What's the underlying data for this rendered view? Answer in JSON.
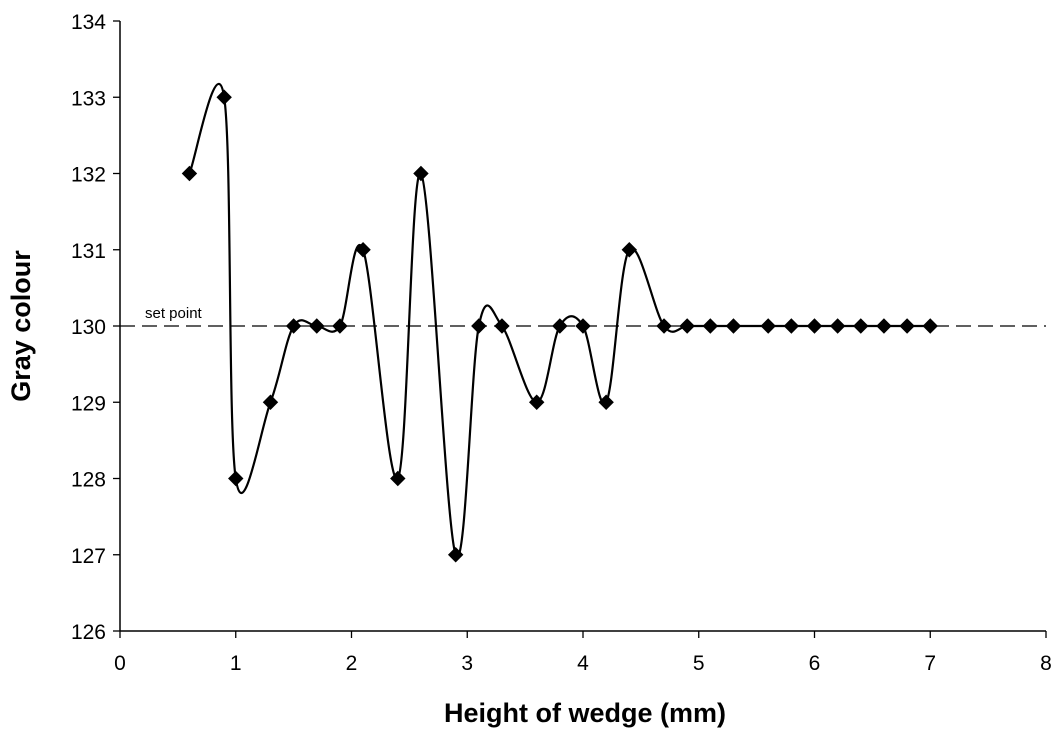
{
  "chart_data": {
    "type": "line",
    "title": "",
    "xlabel": "Height of wedge (mm)",
    "ylabel": "Gray colour",
    "xlim": [
      0,
      8
    ],
    "ylim": [
      126,
      134
    ],
    "x_ticks": [
      "0",
      "1",
      "2",
      "3",
      "4",
      "5",
      "6",
      "7",
      "8"
    ],
    "y_ticks": [
      "126",
      "127",
      "128",
      "129",
      "130",
      "131",
      "132",
      "133",
      "134"
    ],
    "grid": false,
    "legend": "none",
    "smooth": true,
    "marker": "diamond",
    "series": [
      {
        "points": [
          [
            0.6,
            132
          ],
          [
            0.9,
            133
          ],
          [
            1.0,
            128
          ],
          [
            1.3,
            129
          ],
          [
            1.5,
            130
          ],
          [
            1.7,
            130
          ],
          [
            1.9,
            130
          ],
          [
            2.1,
            131
          ],
          [
            2.4,
            128
          ],
          [
            2.6,
            132
          ],
          [
            2.9,
            127
          ],
          [
            3.1,
            130
          ],
          [
            3.3,
            130
          ],
          [
            3.6,
            129
          ],
          [
            3.8,
            130
          ],
          [
            4.0,
            130
          ],
          [
            4.2,
            129
          ],
          [
            4.4,
            131
          ],
          [
            4.7,
            130
          ],
          [
            4.9,
            130
          ],
          [
            5.1,
            130
          ],
          [
            5.3,
            130
          ],
          [
            5.6,
            130
          ],
          [
            5.8,
            130
          ],
          [
            6.0,
            130
          ],
          [
            6.2,
            130
          ],
          [
            6.4,
            130
          ],
          [
            6.6,
            130
          ],
          [
            6.8,
            130
          ],
          [
            7.0,
            130
          ]
        ]
      }
    ],
    "reference_line": {
      "y": 130,
      "label": "set point",
      "style": "dashed"
    },
    "colors": {
      "line": "#000000",
      "marker": "#000000",
      "axis": "#000000"
    }
  }
}
